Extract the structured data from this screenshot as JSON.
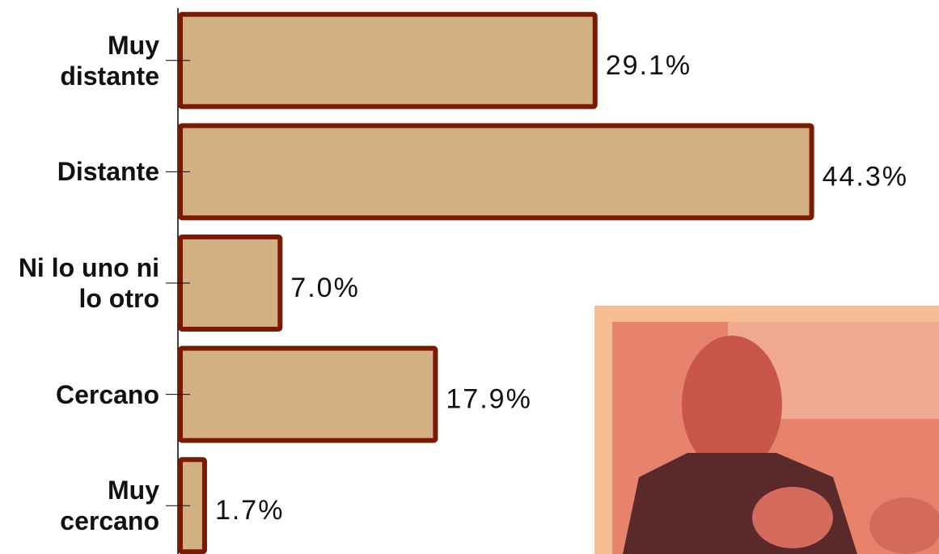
{
  "chart_data": {
    "type": "bar",
    "orientation": "horizontal",
    "categories": [
      "Muy distante",
      "Distante",
      "Ni lo uno ni lo otro",
      "Cercano",
      "Muy cercano"
    ],
    "values": [
      29.1,
      44.3,
      7.0,
      17.9,
      1.7
    ],
    "value_labels": [
      "29.1%",
      "44.3%",
      "7.0%",
      "17.9%",
      "1.7%"
    ],
    "color": "#d2b084",
    "edge_color": "#7b1a00",
    "xlim": [
      0,
      50
    ]
  }
}
